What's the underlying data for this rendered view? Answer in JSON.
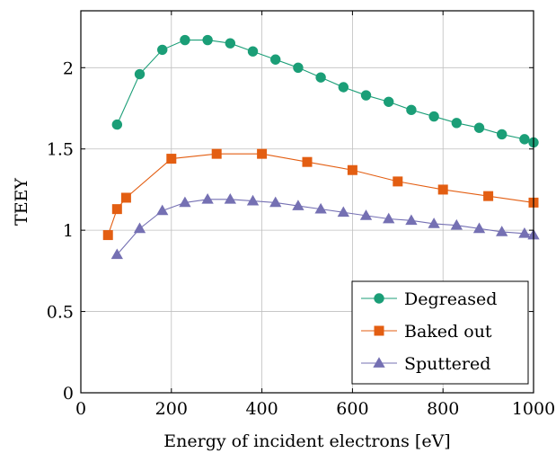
{
  "chart_data": {
    "type": "line",
    "xlabel": "Energy of incident electrons [eV]",
    "ylabel": "TEEY",
    "xlim": [
      0,
      1000
    ],
    "ylim": [
      0,
      2.35
    ],
    "xticks": [
      0,
      200,
      400,
      600,
      800,
      1000
    ],
    "yticks": [
      0,
      0.5,
      1,
      1.5,
      2
    ],
    "grid": true,
    "legend_position": "bottom-right",
    "series": [
      {
        "name": "Degreased",
        "color": "#1b9e77",
        "marker": "circle",
        "x": [
          80,
          130,
          180,
          230,
          280,
          330,
          380,
          430,
          480,
          530,
          580,
          630,
          680,
          730,
          780,
          830,
          880,
          930,
          980,
          1000
        ],
        "y": [
          1.65,
          1.96,
          2.11,
          2.17,
          2.17,
          2.15,
          2.1,
          2.05,
          2.0,
          1.94,
          1.88,
          1.83,
          1.79,
          1.74,
          1.7,
          1.66,
          1.63,
          1.59,
          1.56,
          1.54
        ]
      },
      {
        "name": "Baked out",
        "color": "#e35e12",
        "marker": "square",
        "x": [
          60,
          80,
          100,
          200,
          300,
          400,
          500,
          600,
          700,
          800,
          900,
          1000
        ],
        "y": [
          0.97,
          1.13,
          1.2,
          1.44,
          1.47,
          1.47,
          1.42,
          1.37,
          1.3,
          1.25,
          1.21,
          1.17
        ]
      },
      {
        "name": "Sputtered",
        "color": "#7570b3",
        "marker": "triangle",
        "x": [
          80,
          130,
          180,
          230,
          280,
          330,
          380,
          430,
          480,
          530,
          580,
          630,
          680,
          730,
          780,
          830,
          880,
          930,
          980,
          1000
        ],
        "y": [
          0.85,
          1.01,
          1.12,
          1.17,
          1.19,
          1.19,
          1.18,
          1.17,
          1.15,
          1.13,
          1.11,
          1.09,
          1.07,
          1.06,
          1.04,
          1.03,
          1.01,
          0.99,
          0.98,
          0.97
        ]
      }
    ]
  }
}
